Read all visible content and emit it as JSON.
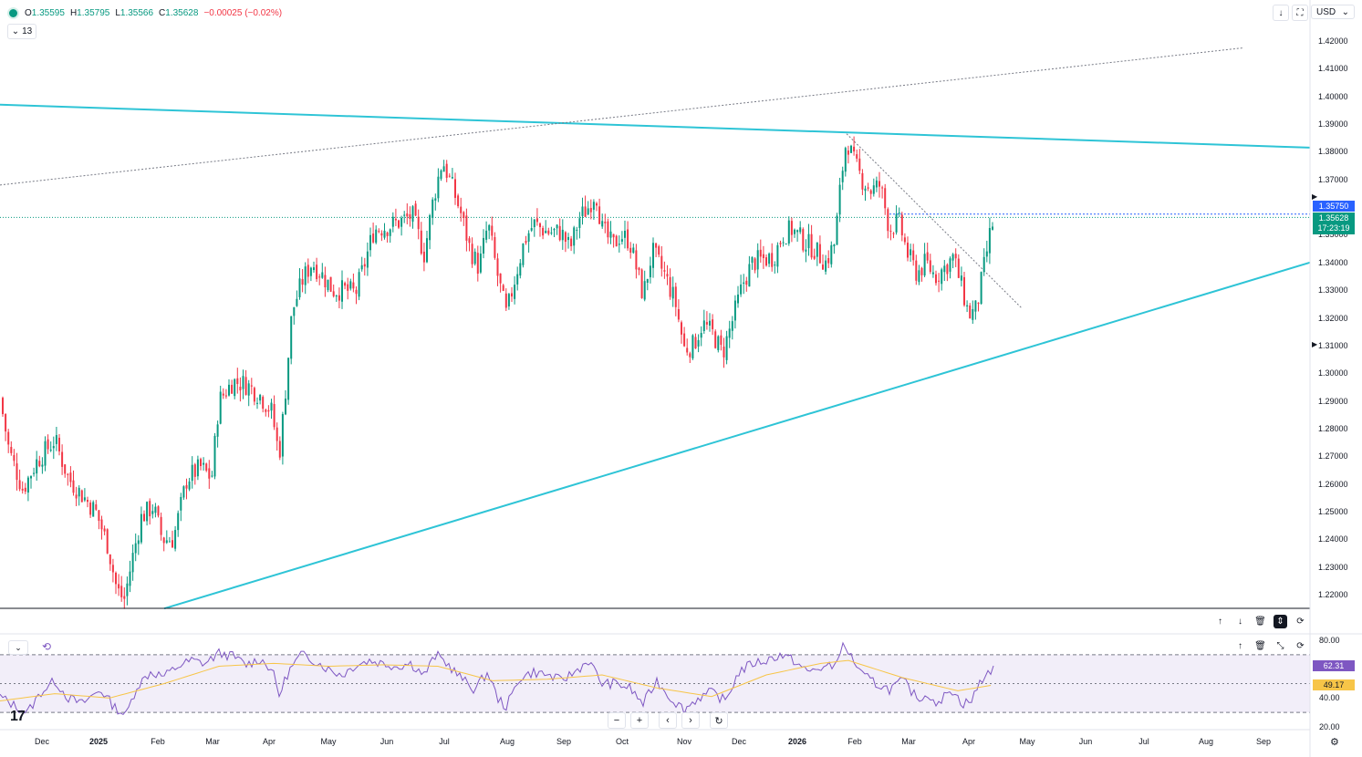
{
  "header": {
    "o_label": "O",
    "o_value": "1.35595",
    "h_label": "H",
    "h_value": "1.35795",
    "l_label": "L",
    "l_value": "1.35566",
    "c_label": "C",
    "c_value": "1.35628",
    "change": "−0.00025 (−0.02%)",
    "indicator_count": "13",
    "currency": "USD"
  },
  "colors": {
    "up": "#089981",
    "down": "#f23645",
    "trendline": "#2ec4d6",
    "rsi": "#7e57c2",
    "rsi_ma": "#f7c548",
    "last_price": "#089981",
    "high_label": "#2962ff"
  },
  "price_labels": {
    "high_marker": "1.35750",
    "last": "1.35628",
    "countdown": "17:23:19",
    "rsi_value": "62.31",
    "rsi_ma_value": "49.17"
  },
  "chart_data": {
    "type": "candlestick",
    "y_ticks": [
      "1.42000",
      "1.41000",
      "1.40000",
      "1.39000",
      "1.38000",
      "1.37000",
      "1.36000",
      "1.35000",
      "1.34000",
      "1.33000",
      "1.32000",
      "1.31000",
      "1.30000",
      "1.29000",
      "1.28000",
      "1.27000",
      "1.26000",
      "1.25000",
      "1.24000",
      "1.23000",
      "1.22000"
    ],
    "ylim": [
      1.215,
      1.425
    ],
    "x_ticks": [
      "Dec",
      "2025",
      "Feb",
      "Mar",
      "Apr",
      "May",
      "Jun",
      "Jul",
      "Aug",
      "Sep",
      "Oct",
      "Nov",
      "Dec",
      "2026",
      "Feb",
      "Mar",
      "Apr",
      "May",
      "Jun",
      "Jul",
      "Aug",
      "Sep"
    ],
    "bold_x_ticks": [
      "2025",
      "2026"
    ],
    "price_path": [
      [
        0,
        1.291
      ],
      [
        10,
        1.272
      ],
      [
        25,
        1.258
      ],
      [
        40,
        1.268
      ],
      [
        60,
        1.276
      ],
      [
        75,
        1.262
      ],
      [
        90,
        1.256
      ],
      [
        105,
        1.25
      ],
      [
        118,
        1.238
      ],
      [
        128,
        1.222
      ],
      [
        136,
        1.218
      ],
      [
        145,
        1.233
      ],
      [
        155,
        1.248
      ],
      [
        168,
        1.252
      ],
      [
        178,
        1.24
      ],
      [
        190,
        1.24
      ],
      [
        205,
        1.262
      ],
      [
        220,
        1.266
      ],
      [
        232,
        1.262
      ],
      [
        240,
        1.29
      ],
      [
        255,
        1.297
      ],
      [
        270,
        1.296
      ],
      [
        285,
        1.292
      ],
      [
        298,
        1.286
      ],
      [
        306,
        1.27
      ],
      [
        312,
        1.29
      ],
      [
        320,
        1.322
      ],
      [
        332,
        1.334
      ],
      [
        342,
        1.34
      ],
      [
        352,
        1.336
      ],
      [
        365,
        1.33
      ],
      [
        378,
        1.33
      ],
      [
        390,
        1.329
      ],
      [
        400,
        1.34
      ],
      [
        410,
        1.352
      ],
      [
        425,
        1.353
      ],
      [
        440,
        1.355
      ],
      [
        452,
        1.357
      ],
      [
        465,
        1.343
      ],
      [
        475,
        1.363
      ],
      [
        485,
        1.377
      ],
      [
        495,
        1.368
      ],
      [
        505,
        1.358
      ],
      [
        515,
        1.345
      ],
      [
        525,
        1.338
      ],
      [
        535,
        1.354
      ],
      [
        545,
        1.336
      ],
      [
        555,
        1.321
      ],
      [
        565,
        1.335
      ],
      [
        575,
        1.348
      ],
      [
        585,
        1.354
      ],
      [
        600,
        1.351
      ],
      [
        615,
        1.351
      ],
      [
        625,
        1.345
      ],
      [
        635,
        1.356
      ],
      [
        645,
        1.36
      ],
      [
        653,
        1.366
      ],
      [
        660,
        1.352
      ],
      [
        672,
        1.346
      ],
      [
        680,
        1.35
      ],
      [
        690,
        1.348
      ],
      [
        705,
        1.328
      ],
      [
        715,
        1.344
      ],
      [
        728,
        1.336
      ],
      [
        740,
        1.326
      ],
      [
        750,
        1.309
      ],
      [
        760,
        1.31
      ],
      [
        770,
        1.318
      ],
      [
        782,
        1.314
      ],
      [
        792,
        1.307
      ],
      [
        802,
        1.318
      ],
      [
        815,
        1.333
      ],
      [
        825,
        1.34
      ],
      [
        835,
        1.341
      ],
      [
        848,
        1.342
      ],
      [
        858,
        1.35
      ],
      [
        868,
        1.352
      ],
      [
        880,
        1.348
      ],
      [
        892,
        1.345
      ],
      [
        905,
        1.34
      ],
      [
        915,
        1.347
      ],
      [
        922,
        1.37
      ],
      [
        928,
        1.385
      ],
      [
        935,
        1.377
      ],
      [
        945,
        1.37
      ],
      [
        955,
        1.366
      ],
      [
        965,
        1.368
      ],
      [
        975,
        1.352
      ],
      [
        985,
        1.355
      ],
      [
        995,
        1.343
      ],
      [
        1005,
        1.336
      ],
      [
        1015,
        1.34
      ],
      [
        1025,
        1.335
      ],
      [
        1035,
        1.338
      ],
      [
        1045,
        1.342
      ],
      [
        1055,
        1.33
      ],
      [
        1062,
        1.321
      ],
      [
        1070,
        1.323
      ],
      [
        1078,
        1.337
      ],
      [
        1085,
        1.35
      ],
      [
        1090,
        1.3563
      ]
    ],
    "trendlines": [
      {
        "style": "solid",
        "from": [
          0,
          1.397
        ],
        "to": [
          1436,
          1.3815
        ]
      },
      {
        "style": "solid",
        "from": [
          180,
          1.215
        ],
        "to": [
          1436,
          1.34
        ]
      },
      {
        "style": "dotted",
        "from": [
          0,
          1.368
        ],
        "to": [
          1362,
          1.4175
        ]
      },
      {
        "style": "dotted",
        "from": [
          928,
          1.3865
        ],
        "to": [
          1120,
          1.3235
        ]
      }
    ],
    "rsi": {
      "y_ticks": [
        "80.00",
        "40.00",
        "20.00"
      ],
      "ylim": [
        20,
        85
      ],
      "upper_band": 70,
      "middle_band": 50,
      "lower_band": 30,
      "path": [
        [
          0,
          41
        ],
        [
          15,
          35
        ],
        [
          30,
          30
        ],
        [
          45,
          44
        ],
        [
          60,
          52
        ],
        [
          75,
          40
        ],
        [
          90,
          36
        ],
        [
          110,
          46
        ],
        [
          125,
          34
        ],
        [
          138,
          28
        ],
        [
          150,
          48
        ],
        [
          165,
          58
        ],
        [
          180,
          55
        ],
        [
          195,
          62
        ],
        [
          210,
          66
        ],
        [
          225,
          64
        ],
        [
          240,
          71
        ],
        [
          255,
          69
        ],
        [
          270,
          63
        ],
        [
          285,
          67
        ],
        [
          298,
          60
        ],
        [
          306,
          42
        ],
        [
          316,
          58
        ],
        [
          330,
          70
        ],
        [
          345,
          66
        ],
        [
          360,
          60
        ],
        [
          375,
          56
        ],
        [
          390,
          63
        ],
        [
          405,
          66
        ],
        [
          420,
          64
        ],
        [
          435,
          62
        ],
        [
          450,
          64
        ],
        [
          465,
          56
        ],
        [
          478,
          70
        ],
        [
          490,
          64
        ],
        [
          505,
          54
        ],
        [
          520,
          46
        ],
        [
          535,
          58
        ],
        [
          545,
          40
        ],
        [
          555,
          34
        ],
        [
          570,
          54
        ],
        [
          585,
          58
        ],
        [
          600,
          56
        ],
        [
          615,
          52
        ],
        [
          630,
          58
        ],
        [
          645,
          66
        ],
        [
          660,
          50
        ],
        [
          675,
          50
        ],
        [
          690,
          47
        ],
        [
          705,
          36
        ],
        [
          720,
          52
        ],
        [
          735,
          40
        ],
        [
          750,
          32
        ],
        [
          765,
          40
        ],
        [
          780,
          44
        ],
        [
          795,
          38
        ],
        [
          810,
          58
        ],
        [
          825,
          64
        ],
        [
          840,
          66
        ],
        [
          855,
          70
        ],
        [
          870,
          66
        ],
        [
          885,
          58
        ],
        [
          900,
          61
        ],
        [
          915,
          62
        ],
        [
          922,
          76
        ],
        [
          930,
          72
        ],
        [
          945,
          56
        ],
        [
          960,
          50
        ],
        [
          975,
          46
        ],
        [
          990,
          52
        ],
        [
          1005,
          40
        ],
        [
          1020,
          42
        ],
        [
          1030,
          34
        ],
        [
          1040,
          48
        ],
        [
          1055,
          36
        ],
        [
          1065,
          38
        ],
        [
          1075,
          52
        ],
        [
          1090,
          62.31
        ]
      ],
      "ma_path": [
        [
          0,
          38
        ],
        [
          60,
          43
        ],
        [
          120,
          40
        ],
        [
          180,
          50
        ],
        [
          240,
          62
        ],
        [
          300,
          64
        ],
        [
          360,
          62
        ],
        [
          420,
          63
        ],
        [
          480,
          62
        ],
        [
          540,
          52
        ],
        [
          600,
          53
        ],
        [
          660,
          56
        ],
        [
          720,
          47
        ],
        [
          780,
          41
        ],
        [
          840,
          56
        ],
        [
          900,
          64
        ],
        [
          930,
          66
        ],
        [
          990,
          54
        ],
        [
          1050,
          45
        ],
        [
          1090,
          49.17
        ]
      ]
    }
  }
}
